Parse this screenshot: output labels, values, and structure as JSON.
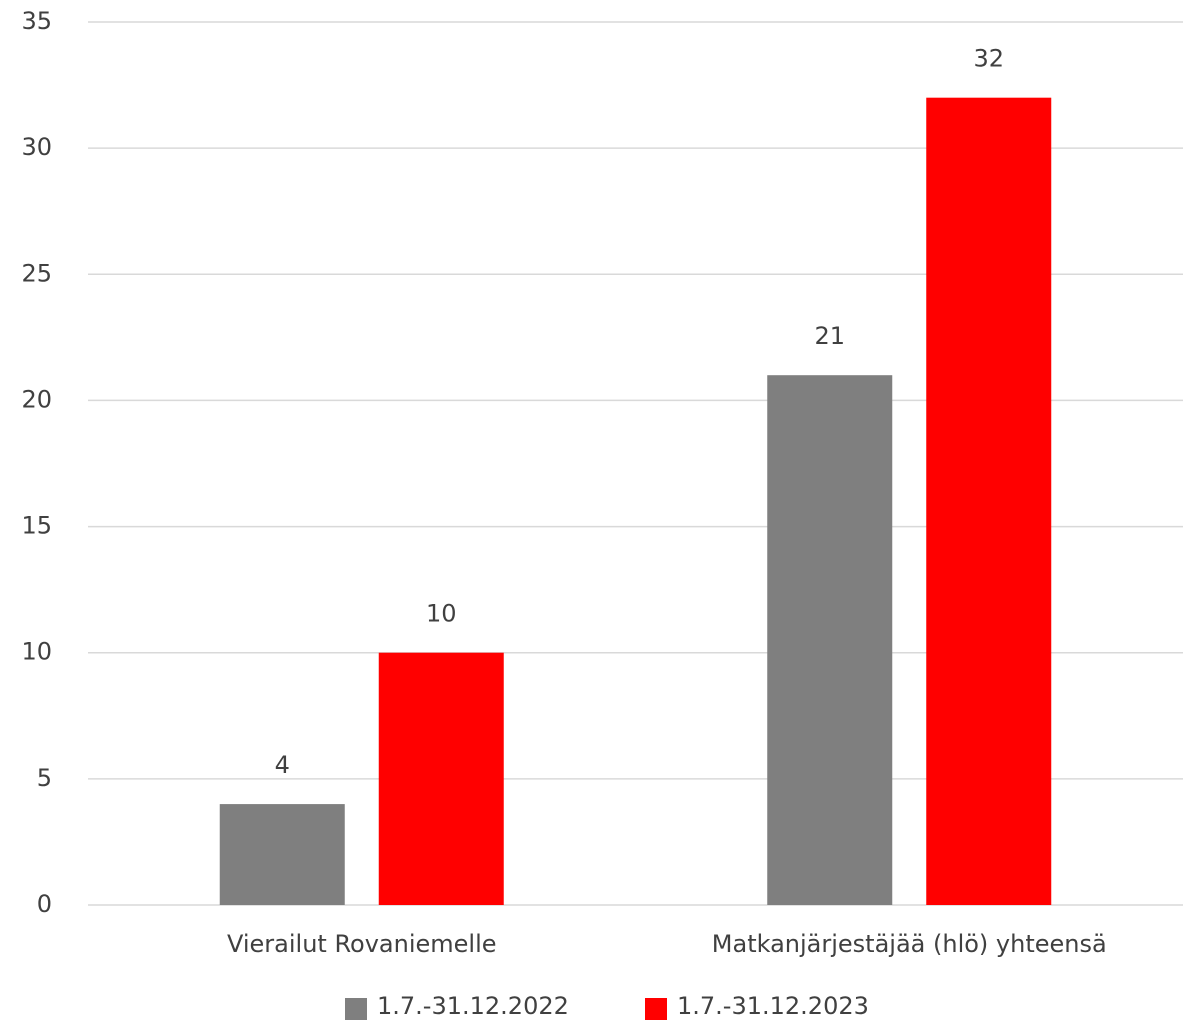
{
  "chart_data": {
    "type": "bar",
    "categories": [
      "Vierailut Rovaniemelle",
      "Matkanjärjestäjää (hlö) yhteensä"
    ],
    "series": [
      {
        "name": "1.7.-31.12.2022",
        "color": "#7f7f7f",
        "values": [
          4,
          21
        ]
      },
      {
        "name": "1.7.-31.12.2023",
        "color": "#ff0000",
        "values": [
          10,
          32
        ]
      }
    ],
    "ylim": [
      0,
      35
    ],
    "yticks": [
      0,
      5,
      10,
      15,
      20,
      25,
      30,
      35
    ],
    "grid": true,
    "legend": "bottom"
  }
}
